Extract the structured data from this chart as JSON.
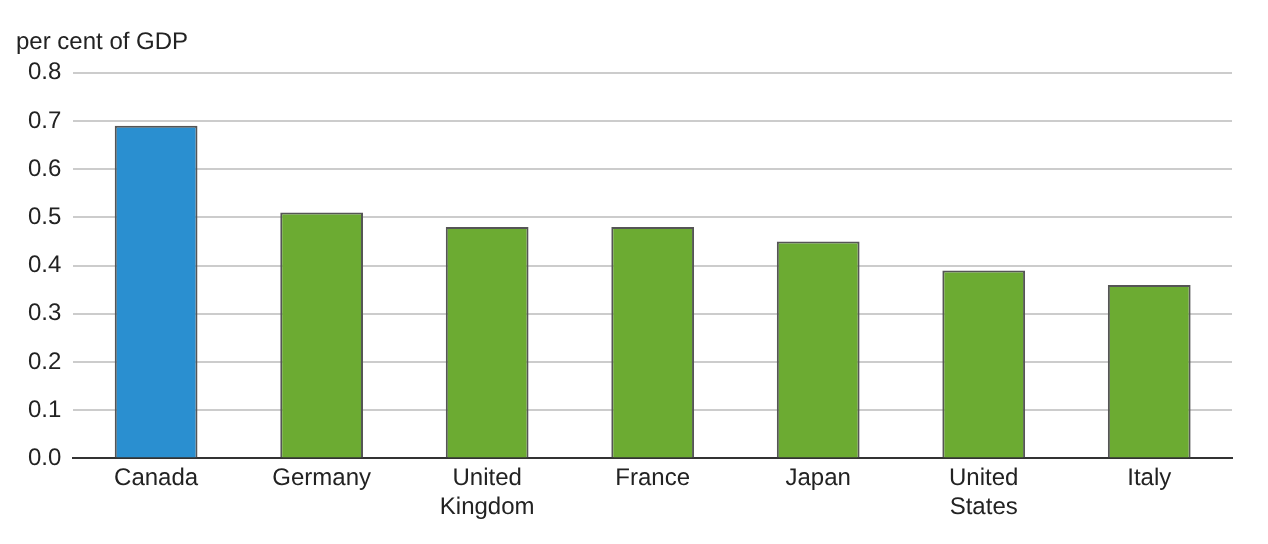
{
  "chart_data": {
    "type": "bar",
    "ylabel": "per cent of GDP",
    "categories": [
      "Canada",
      "Germany",
      "United Kingdom",
      "France",
      "Japan",
      "United States",
      "Italy"
    ],
    "values": [
      0.69,
      0.51,
      0.48,
      0.48,
      0.45,
      0.39,
      0.36
    ],
    "colors": [
      "#2a8fd0",
      "#6cab32",
      "#6cab32",
      "#6cab32",
      "#6cab32",
      "#6cab32",
      "#6cab32"
    ],
    "ylim": [
      0,
      0.8
    ],
    "yticks": [
      {
        "value": 0,
        "label": "0.0"
      },
      0.1,
      0.2,
      0.3,
      0.4,
      0.5,
      0.6,
      0.7,
      0.8
    ],
    "grid": "y",
    "legend": false
  }
}
